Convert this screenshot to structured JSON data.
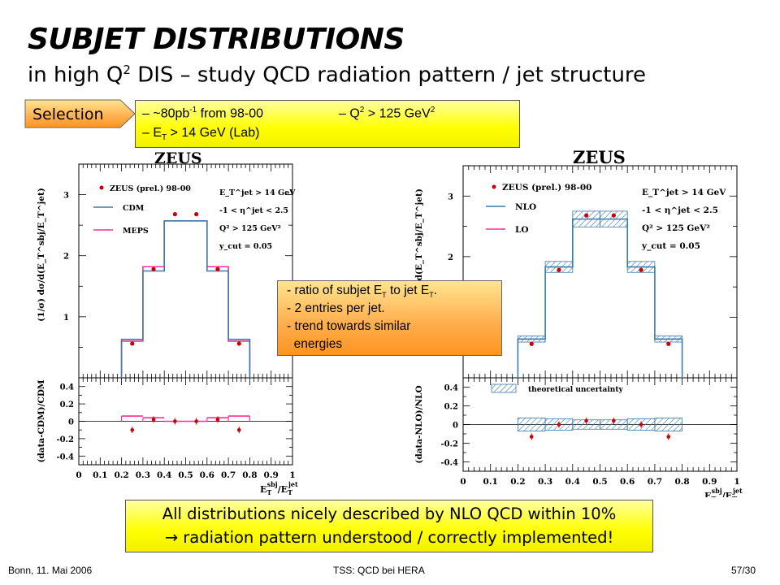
{
  "slide": {
    "title": "SUBJET DISTRIBUTIONS",
    "subtitle_pre": "in high Q",
    "subtitle_sup": "2",
    "subtitle_post": " DIS – study QCD radiation pattern / jet structure"
  },
  "selection": {
    "label": "Selection",
    "l1a": "– ~80pb",
    "l1a_sup": "-1",
    "l1b": " from 98-00",
    "l1c": "– Q",
    "l1c_sup": "2",
    "l1d": " > 125 GeV",
    "l1d_sup": "2",
    "l2a": "– E",
    "l2a_sub": "T",
    "l2b": " > 14 GeV (Lab)"
  },
  "annotation": {
    "l1a": "- ratio of subjet E",
    "l1a_sub": "T",
    "l1b": " to jet E",
    "l1b_sub": "T",
    "l1c": ".",
    "l2": "- 2 entries per jet.",
    "l3": "- trend towards similar",
    "l4": "  energies"
  },
  "conclusion": {
    "line1": "All distributions nicely described by NLO QCD within 10%",
    "line2": "→ radiation pattern understood / correctly implemented!"
  },
  "footer": {
    "left": "Bonn, 11. Mai 2006",
    "center": "TSS: QCD bei HERA",
    "right": "57/30"
  },
  "colors": {
    "model_blue": "#3a7ca8",
    "model_magenta": "#ff2e9a",
    "data_red": "#cc0000",
    "band_blue": "#3a7ca8"
  },
  "chart_data": [
    {
      "type": "line",
      "logo": "ZEUS",
      "ylabel": "(1/σ) dσ/d(E_T^sbj/E_T^jet)",
      "xlabel": "E_T^sbj/E_T^jet",
      "xlim": [
        0,
        1
      ],
      "ylim": [
        0,
        3.5
      ],
      "yticks": [
        "1",
        "2",
        "3"
      ],
      "legend": {
        "data": "ZEUS (prel.) 98-00",
        "series1": "CDM",
        "series2": "MEPS"
      },
      "cuts": [
        "E_T^jet > 14 GeV",
        "-1 < η^jet < 2.5",
        "Q² > 125 GeV²",
        "y_cut = 0.05"
      ],
      "bin_edges": [
        0.2,
        0.3,
        0.4,
        0.5,
        0.6,
        0.7,
        0.8
      ],
      "data_x": [
        0.25,
        0.35,
        0.45,
        0.55,
        0.65,
        0.75
      ],
      "data_y": [
        0.56,
        1.78,
        2.68,
        2.68,
        1.78,
        0.56
      ],
      "series": [
        {
          "name": "CDM",
          "values": [
            0.63,
            1.75,
            2.57,
            2.57,
            1.75,
            0.63
          ]
        },
        {
          "name": "MEPS",
          "values": [
            0.6,
            1.82,
            2.57,
            2.57,
            1.82,
            0.6
          ]
        }
      ],
      "ratio": {
        "ylabel": "(data-CDM)/CDM",
        "ylim": [
          -0.5,
          0.5
        ],
        "yticks": [
          "0.4",
          "0.2",
          "0",
          "-0.2",
          "-0.4"
        ],
        "data_y": [
          -0.1,
          0.02,
          0.0,
          0.0,
          0.02,
          -0.1
        ],
        "meps": [
          0.06,
          0.04,
          0.0,
          0.0,
          0.04,
          0.06
        ]
      },
      "xticks": [
        "0",
        "0.1",
        "0.2",
        "0.3",
        "0.4",
        "0.5",
        "0.6",
        "0.7",
        "0.8",
        "0.9",
        "1"
      ]
    },
    {
      "type": "line",
      "logo": "ZEUS",
      "ylabel": "(1/σ) dσ/d(E_T^sbj/E_T^jet)",
      "xlabel": "E_T^sbj/E_T^jet",
      "xlim": [
        0,
        1
      ],
      "ylim": [
        0,
        3.5
      ],
      "yticks": [
        "1",
        "2",
        "3"
      ],
      "legend": {
        "data": "ZEUS (prel.) 98-00",
        "series1": "NLO",
        "series2": "LO"
      },
      "cuts": [
        "E_T^jet > 14 GeV",
        "-1 < η^jet < 2.5",
        "Q² > 125 GeV²",
        "y_cut = 0.05"
      ],
      "bin_edges": [
        0.2,
        0.3,
        0.4,
        0.5,
        0.6,
        0.7,
        0.8
      ],
      "data_x": [
        0.25,
        0.35,
        0.45,
        0.55,
        0.65,
        0.75
      ],
      "data_y": [
        0.56,
        1.78,
        2.68,
        2.68,
        1.78,
        0.56
      ],
      "series": [
        {
          "name": "NLO",
          "values": [
            0.64,
            1.83,
            2.62,
            2.62,
            1.83,
            0.64
          ]
        },
        {
          "name": "LO",
          "values": [
            0.0,
            0.0,
            0.0,
            0.0,
            0.0,
            0.0
          ]
        }
      ],
      "band_halfwidth": [
        0.05,
        0.09,
        0.13,
        0.13,
        0.09,
        0.05
      ],
      "ratio": {
        "ylabel": "(data-NLO)/NLO",
        "ylim": [
          -0.5,
          0.5
        ],
        "yticks": [
          "0.4",
          "0.2",
          "0",
          "-0.2",
          "-0.4"
        ],
        "data_y": [
          -0.13,
          0.0,
          0.04,
          0.04,
          0.0,
          -0.13
        ],
        "band_halfwidth": [
          0.07,
          0.06,
          0.05,
          0.05,
          0.06,
          0.07
        ],
        "legend": "theoretical uncertainty"
      },
      "xticks": [
        "0",
        "0.1",
        "0.2",
        "0.3",
        "0.4",
        "0.5",
        "0.6",
        "0.7",
        "0.8",
        "0.9",
        "1"
      ]
    }
  ]
}
